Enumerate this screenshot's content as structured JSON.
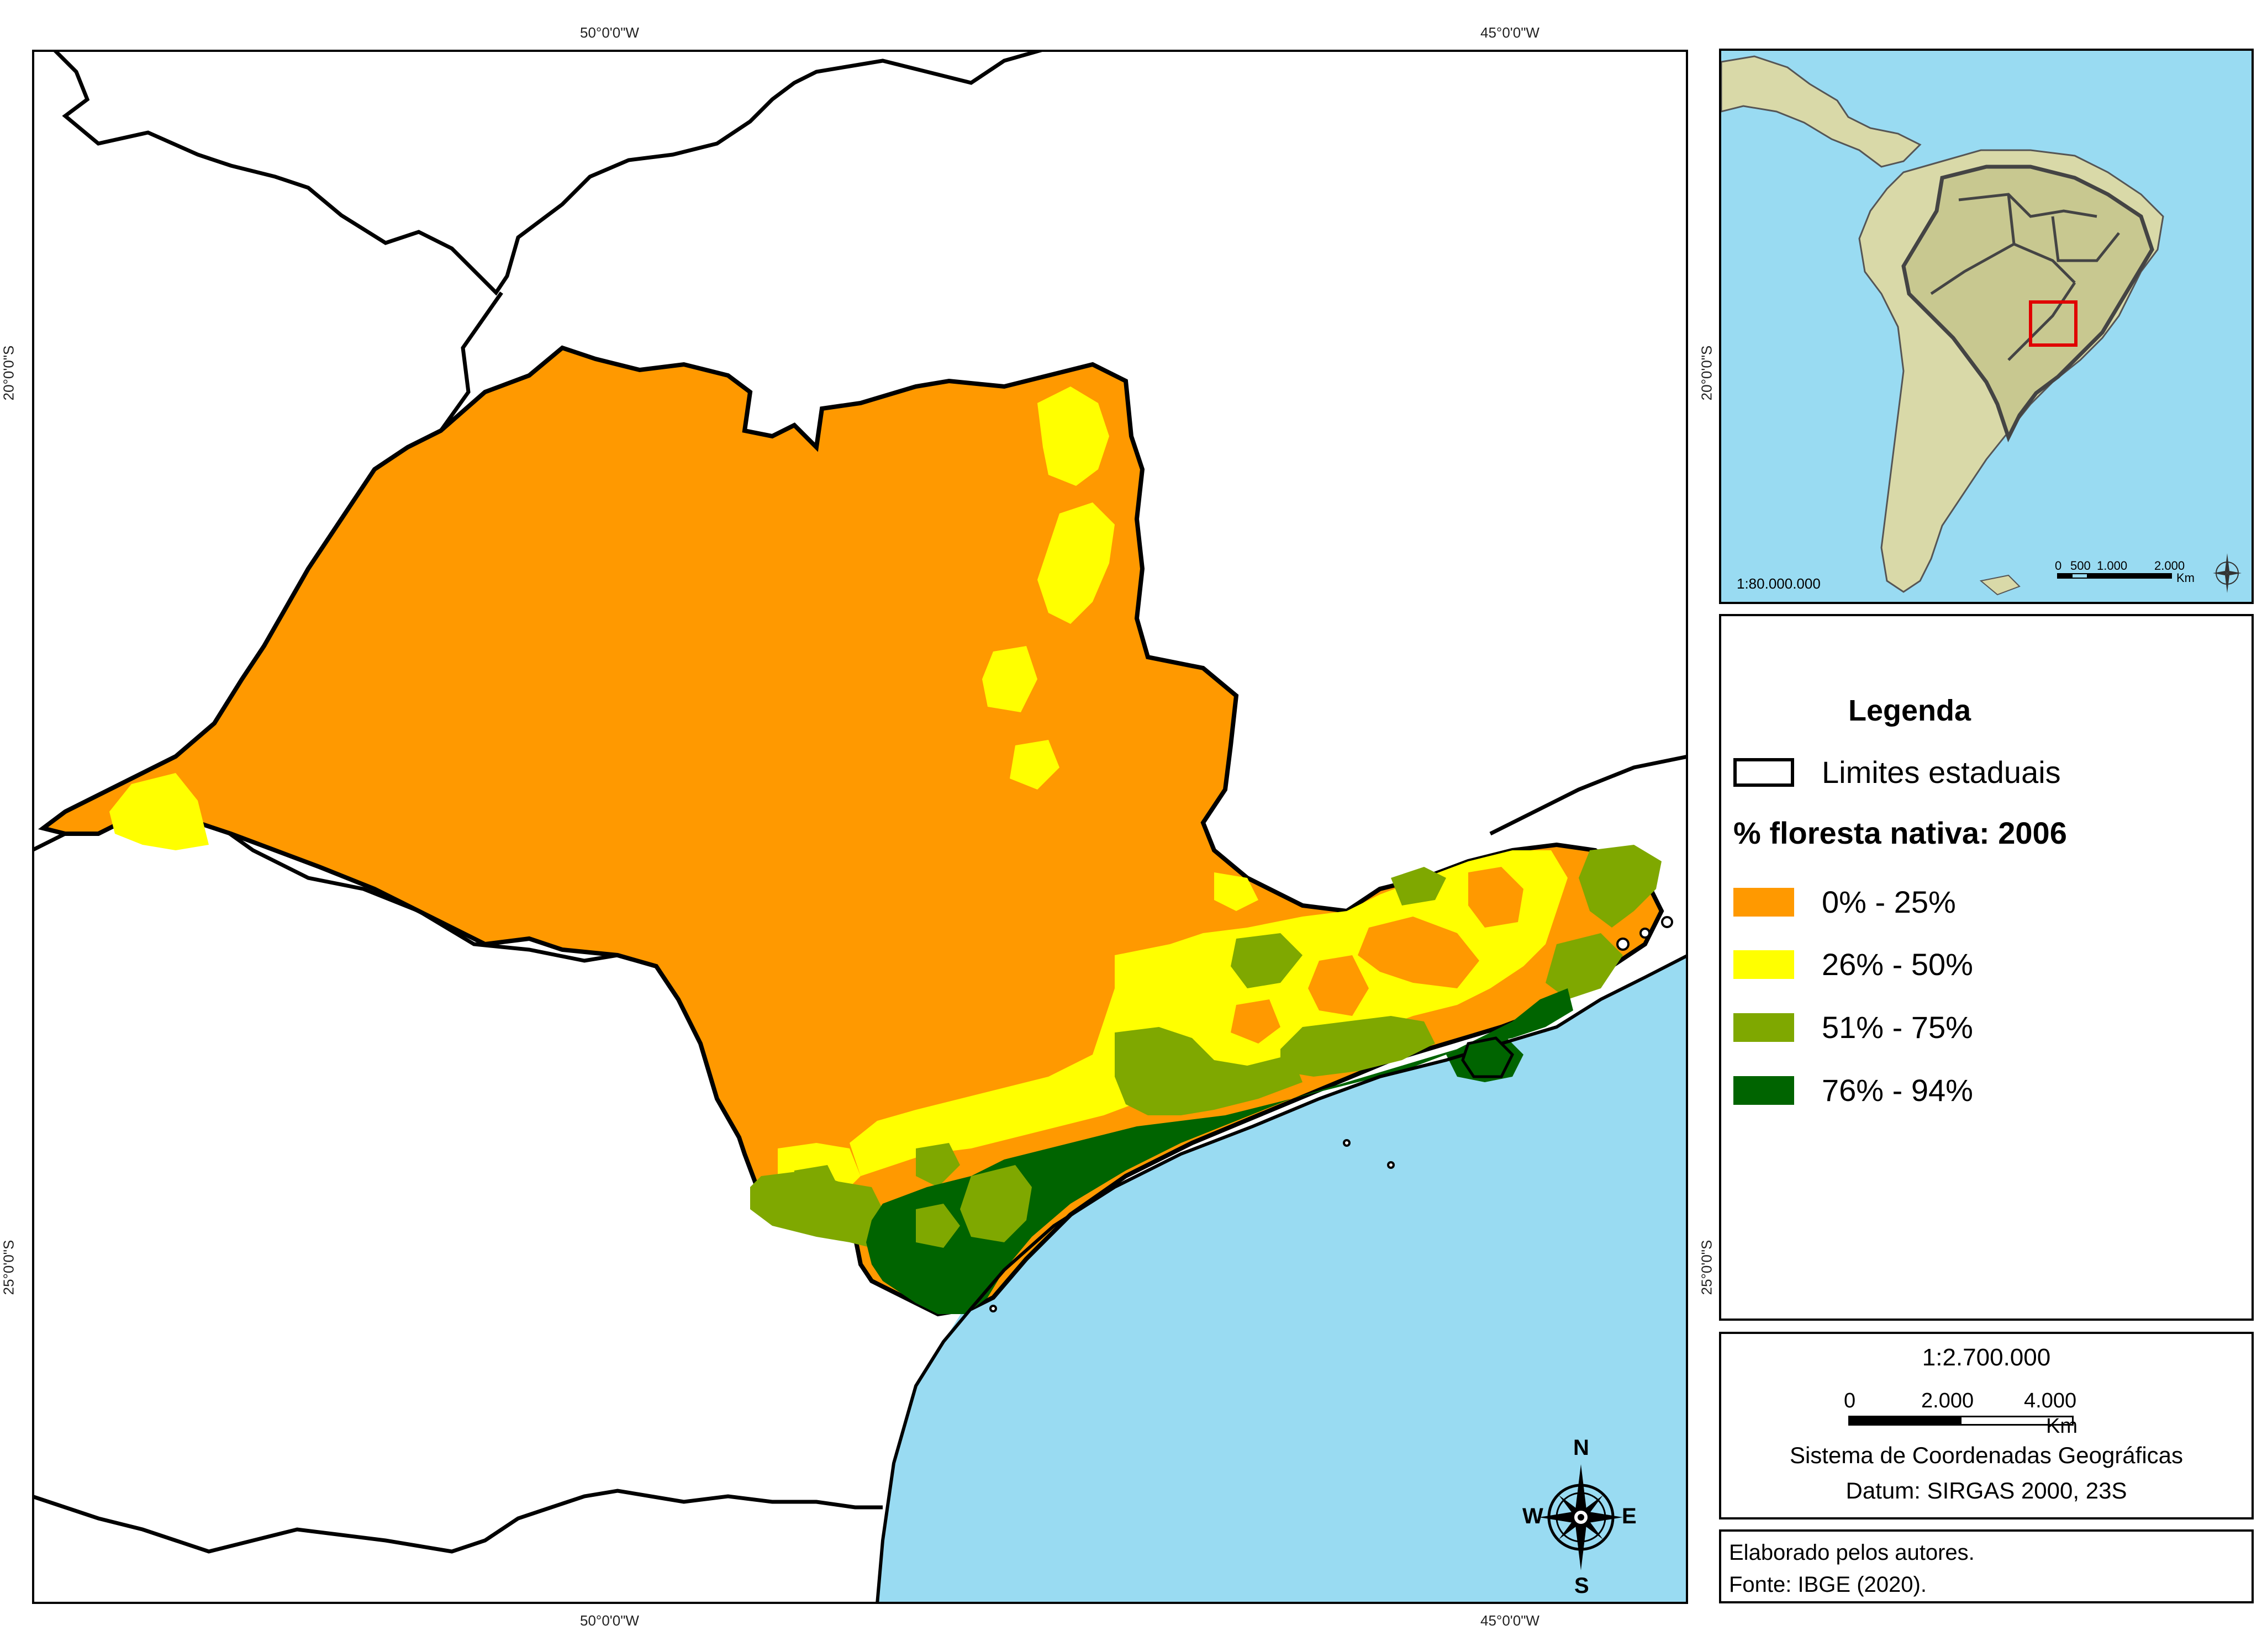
{
  "coordinates": {
    "top_w50": "50°0'0\"W",
    "top_w45": "45°0'0\"W",
    "bottom_w50": "50°0'0\"W",
    "bottom_w45": "45°0'0\"W",
    "left_s20": "20°0'0\"S",
    "left_s25": "25°0'0\"S",
    "right_s20": "20°0'0\"S",
    "right_s25": "25°0'0\"S"
  },
  "compass": {
    "n": "N",
    "s": "S",
    "e": "E",
    "w": "W"
  },
  "inset": {
    "scale": "1:80.000.000",
    "bar_labels": [
      "0",
      "500",
      "1.000",
      "2.000"
    ],
    "bar_unit": "Km"
  },
  "legend": {
    "title": "Legenda",
    "state_limits": "Limites estaduais",
    "forest_heading": "% floresta nativa: 2006",
    "classes": [
      {
        "label": "0% - 25%",
        "color": "#ff9900"
      },
      {
        "label": "26% - 50%",
        "color": "#ffff00"
      },
      {
        "label": "51% - 75%",
        "color": "#7fa800"
      },
      {
        "label": "76% - 94%",
        "color": "#006400"
      }
    ]
  },
  "scale_panel": {
    "scale": "1:2.700.000",
    "bar_labels": [
      "0",
      "2.000",
      "4.000"
    ],
    "bar_unit": "Km",
    "crs": "Sistema de Coordenadas Geográficas",
    "datum": "Datum: SIRGAS 2000, 23S"
  },
  "credits": {
    "line1": "Elaborado pelos autores.",
    "line2": "Fonte: IBGE (2020)."
  },
  "colors": {
    "ocean": "#99dbf2",
    "land": "#ffffff",
    "inset_land": "#d9d9a8",
    "inset_brazil": "#c8c890",
    "highlight_box": "#e00000"
  }
}
